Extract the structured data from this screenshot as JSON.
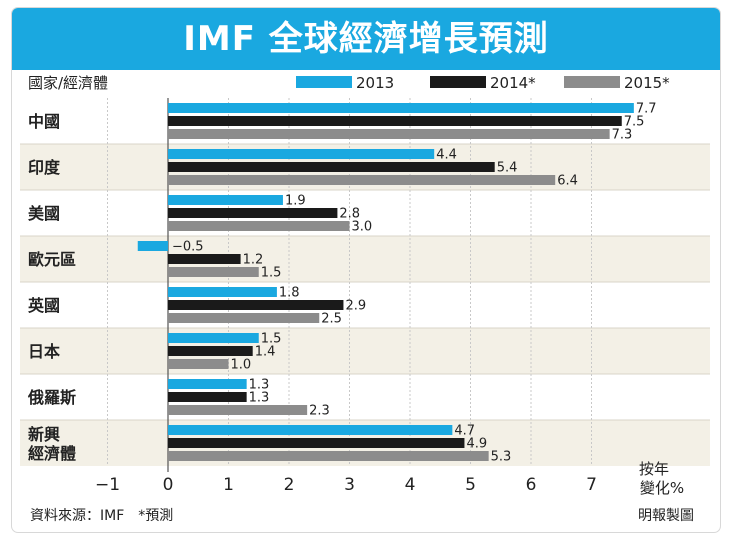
{
  "chart_data": {
    "type": "bar",
    "orientation": "horizontal",
    "title": "IMF 全球經濟增長預測",
    "category_header": "國家/經濟體",
    "categories": [
      "中國",
      "印度",
      "美國",
      "歐元區",
      "英國",
      "日本",
      "俄羅斯",
      "新興\n經濟體"
    ],
    "series": [
      {
        "name": "2013",
        "color": "#1aa8e0",
        "values": [
          7.7,
          4.4,
          1.9,
          -0.5,
          1.8,
          1.5,
          1.3,
          4.7
        ]
      },
      {
        "name": "2014*",
        "color": "#1a1a1a",
        "values": [
          7.5,
          5.4,
          2.8,
          1.2,
          2.9,
          1.4,
          1.3,
          4.9
        ]
      },
      {
        "name": "2015*",
        "color": "#8c8c8c",
        "values": [
          7.3,
          6.4,
          3.0,
          1.5,
          2.5,
          1.0,
          2.3,
          5.3
        ]
      }
    ],
    "value_labels": [
      [
        "7.7",
        "4.4",
        "1.9",
        "−0.5",
        "1.8",
        "1.5",
        "1.3",
        "4.7"
      ],
      [
        "7.5",
        "5.4",
        "2.8",
        "1.2",
        "2.9",
        "1.4",
        "1.3",
        "4.9"
      ],
      [
        "7.3",
        "6.4",
        "3.0",
        "1.5",
        "2.5",
        "1.0",
        "2.3",
        "5.3"
      ]
    ],
    "x_ticks": [
      "−1",
      "0",
      "1",
      "2",
      "3",
      "4",
      "5",
      "6",
      "7"
    ],
    "xlim": [
      -1,
      8.2
    ],
    "xlabel": "按年\n變化%",
    "legend_position": "top",
    "grid": "vertical",
    "source": "資料來源：IMF　*預測",
    "credit": "明報製圖"
  }
}
